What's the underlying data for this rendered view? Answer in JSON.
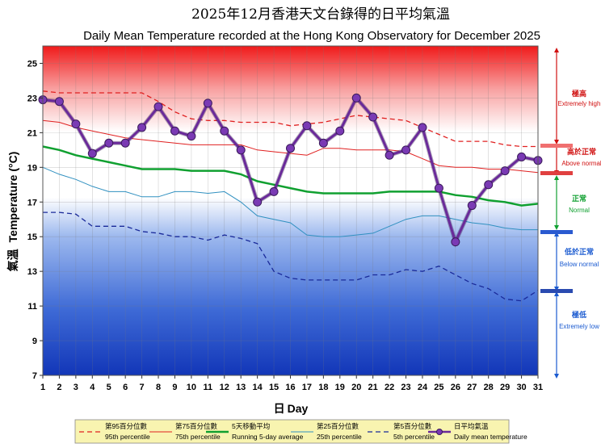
{
  "chart_data": {
    "type": "line",
    "title_zh": "2025年12月香港天文台錄得的日平均氣溫",
    "title_en": "Daily Mean Temperature recorded at the Hong Kong Observatory for December 2025",
    "xlabel_zh": "日",
    "xlabel_en": "Day",
    "ylabel_zh": "氣溫",
    "ylabel_en": "Temperature (°C)",
    "xlim": [
      1,
      31
    ],
    "ylim": [
      7,
      26
    ],
    "yticks": [
      7,
      9,
      11,
      13,
      15,
      17,
      19,
      21,
      23,
      25
    ],
    "x": [
      1,
      2,
      3,
      4,
      5,
      6,
      7,
      8,
      9,
      10,
      11,
      12,
      13,
      14,
      15,
      16,
      17,
      18,
      19,
      20,
      21,
      22,
      23,
      24,
      25,
      26,
      27,
      28,
      29,
      30,
      31
    ],
    "series": [
      {
        "name_zh": "第95百分位數",
        "name_en": "95th percentile",
        "color": "#e02020",
        "style": "dashed",
        "values": [
          23.4,
          23.3,
          23.3,
          23.3,
          23.3,
          23.3,
          23.3,
          22.8,
          22.2,
          21.8,
          21.7,
          21.7,
          21.6,
          21.6,
          21.6,
          21.4,
          21.5,
          21.6,
          21.8,
          22.0,
          21.9,
          21.8,
          21.7,
          21.3,
          20.9,
          20.5,
          20.5,
          20.5,
          20.3,
          20.2,
          20.2
        ]
      },
      {
        "name_zh": "第75百分位數",
        "name_en": "75th percentile",
        "color": "#e02020",
        "style": "solid-thin",
        "values": [
          21.7,
          21.6,
          21.3,
          21.1,
          20.9,
          20.7,
          20.6,
          20.5,
          20.4,
          20.3,
          20.3,
          20.3,
          20.3,
          20.0,
          19.9,
          19.8,
          19.7,
          20.1,
          20.1,
          20.0,
          20.0,
          20.0,
          19.9,
          19.5,
          19.1,
          19.0,
          19.0,
          18.9,
          18.9,
          18.8,
          18.7
        ]
      },
      {
        "name_zh": "5天移動平均",
        "name_en": "Running 5-day average",
        "color": "#10a030",
        "style": "solid-thick",
        "values": [
          20.2,
          20.0,
          19.7,
          19.5,
          19.3,
          19.1,
          18.9,
          18.9,
          18.9,
          18.8,
          18.8,
          18.8,
          18.6,
          18.2,
          18.0,
          17.8,
          17.6,
          17.5,
          17.5,
          17.5,
          17.5,
          17.6,
          17.6,
          17.6,
          17.6,
          17.4,
          17.3,
          17.1,
          17.0,
          16.8,
          16.9
        ]
      },
      {
        "name_zh": "第25百分位數",
        "name_en": "25th percentile",
        "color": "#3090c0",
        "style": "solid-thin",
        "values": [
          19.0,
          18.6,
          18.3,
          17.9,
          17.6,
          17.6,
          17.3,
          17.3,
          17.6,
          17.6,
          17.5,
          17.6,
          17.0,
          16.2,
          16.0,
          15.8,
          15.1,
          15.0,
          15.0,
          15.1,
          15.2,
          15.6,
          16.0,
          16.2,
          16.2,
          16.0,
          15.8,
          15.7,
          15.5,
          15.4,
          15.4
        ]
      },
      {
        "name_zh": "第5百分位數",
        "name_en": "5th percentile",
        "color": "#1a2a9a",
        "style": "dashed",
        "values": [
          16.4,
          16.4,
          16.3,
          15.6,
          15.6,
          15.6,
          15.3,
          15.2,
          15.0,
          15.0,
          14.8,
          15.1,
          14.9,
          14.6,
          13.0,
          12.6,
          12.5,
          12.5,
          12.5,
          12.5,
          12.8,
          12.8,
          13.1,
          13.0,
          13.3,
          12.8,
          12.3,
          12.0,
          11.4,
          11.3,
          11.9
        ]
      },
      {
        "name_zh": "日平均氣溫",
        "name_en": "Daily mean temperature",
        "color": "#6a2a9a",
        "style": "marker",
        "values": [
          22.9,
          22.8,
          21.5,
          19.8,
          20.4,
          20.4,
          21.3,
          22.5,
          21.1,
          20.8,
          22.7,
          21.1,
          20.0,
          17.0,
          17.6,
          20.1,
          21.4,
          20.4,
          21.1,
          23.0,
          21.9,
          19.7,
          20.0,
          21.3,
          17.8,
          14.7,
          16.8,
          18.0,
          18.8,
          19.6,
          19.4
        ]
      }
    ],
    "bands": [
      {
        "zh": "極高",
        "en": "Extremely high",
        "color": "#d01010"
      },
      {
        "zh": "高於正常",
        "en": "Above normal",
        "color": "#d01010"
      },
      {
        "zh": "正常",
        "en": "Normal",
        "color": "#10a030"
      },
      {
        "zh": "低於正常",
        "en": "Below normal",
        "color": "#1a5ad0"
      },
      {
        "zh": "極低",
        "en": "Extremely low",
        "color": "#1a5ad0"
      }
    ]
  }
}
